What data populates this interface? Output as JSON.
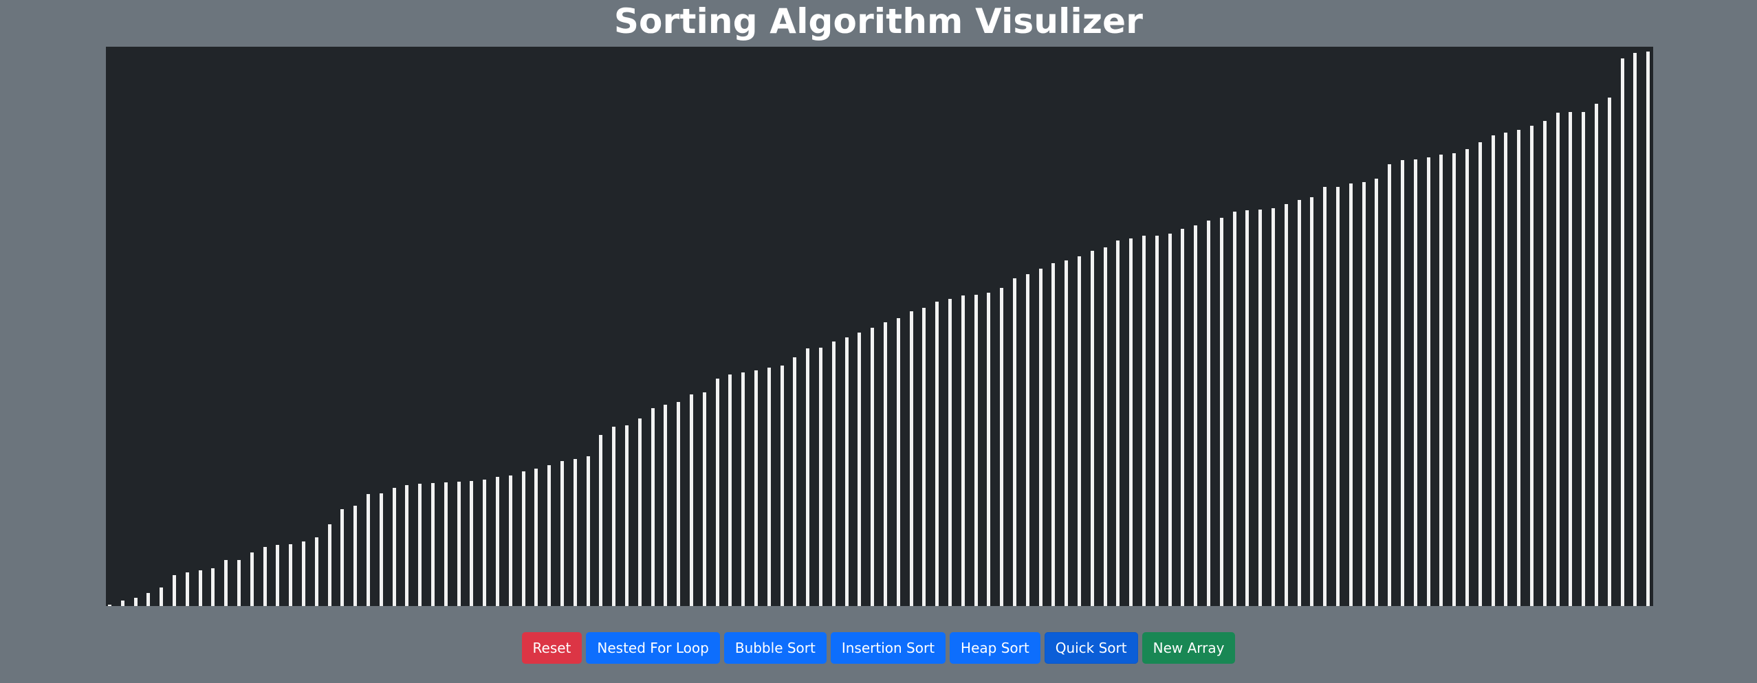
{
  "header": {
    "title": "Sorting Algorithm Visulizer"
  },
  "colors": {
    "page_background": "#6c757d",
    "canvas_background": "#212529",
    "bar": "#f2f2f2",
    "reset": "#dc3545",
    "primary": "#0d6efd",
    "new_array": "#198754"
  },
  "array": {
    "state": "sorted ascending",
    "values": [
      2,
      10,
      15,
      24,
      35,
      58,
      63,
      66,
      70,
      85,
      86,
      100,
      110,
      114,
      115,
      120,
      128,
      152,
      180,
      186,
      208,
      210,
      220,
      225,
      228,
      229,
      230,
      231,
      232,
      235,
      240,
      243,
      250,
      255,
      262,
      270,
      274,
      279,
      318,
      334,
      336,
      349,
      368,
      374,
      380,
      394,
      397,
      423,
      430,
      435,
      438,
      443,
      447,
      462,
      479,
      480,
      492,
      500,
      508,
      518,
      528,
      536,
      548,
      555,
      566,
      571,
      578,
      579,
      583,
      592,
      609,
      617,
      628,
      638,
      643,
      651,
      661,
      667,
      680,
      684,
      689,
      689,
      692,
      701,
      708,
      717,
      722,
      734,
      736,
      737,
      740,
      748,
      755,
      760,
      779,
      780,
      786,
      789,
      795,
      822,
      829,
      830,
      834,
      840,
      842,
      850,
      862,
      875,
      880,
      886,
      893,
      902,
      917,
      919,
      919,
      934,
      946,
      1018,
      1028,
      1031,
      1035
    ]
  },
  "controls": {
    "reset_label": "Reset",
    "nested_for_loop_label": "Nested For Loop",
    "bubble_sort_label": "Bubble Sort",
    "insertion_sort_label": "Insertion Sort",
    "heap_sort_label": "Heap Sort",
    "quick_sort_label": "Quick Sort",
    "new_array_label": "New Array"
  }
}
